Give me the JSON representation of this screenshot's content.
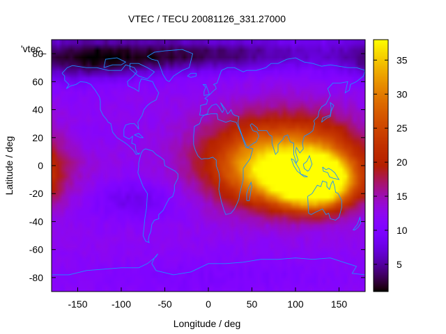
{
  "chart_data": {
    "type": "heatmap",
    "title": "VTEC / TECU 20081126_331.27000",
    "xlabel": "Longitude / deg",
    "ylabel": "Latitude / deg",
    "key_label": "'vtec_",
    "xlim": [
      -180,
      180
    ],
    "ylim": [
      -90,
      90
    ],
    "x_ticks": [
      -150,
      -100,
      -50,
      0,
      50,
      100,
      150
    ],
    "y_ticks": [
      -80,
      -60,
      -40,
      -20,
      0,
      20,
      40,
      60,
      80
    ],
    "colorbar": {
      "range": [
        1,
        38
      ],
      "ticks": [
        5,
        10,
        15,
        20,
        25,
        30,
        35
      ]
    },
    "background_level": 12,
    "features": [
      {
        "lon": 118,
        "lat": -12,
        "peak": 38,
        "slon": 30,
        "slat": 12
      },
      {
        "lon": 90,
        "lat": 5,
        "peak": 22,
        "slon": 62,
        "slat": 20
      },
      {
        "lon": 48,
        "lat": -8,
        "peak": 6,
        "slon": 28,
        "slat": 15
      },
      {
        "lon": -85,
        "lat": -25,
        "peak": -4,
        "slon": 35,
        "slat": 10
      },
      {
        "lon": -100,
        "lat": 78,
        "peak": -8,
        "slon": 70,
        "slat": 10
      },
      {
        "lon": 40,
        "lat": 80,
        "peak": -7,
        "slon": 80,
        "slat": 8
      },
      {
        "lon": -150,
        "lat": 75,
        "peak": -4,
        "slon": 40,
        "slat": 12
      },
      {
        "lon": -160,
        "lat": 20,
        "peak": -2,
        "slon": 30,
        "slat": 15
      },
      {
        "lon": 0,
        "lat": -80,
        "peak": -2,
        "slon": 120,
        "slat": 10
      }
    ]
  }
}
